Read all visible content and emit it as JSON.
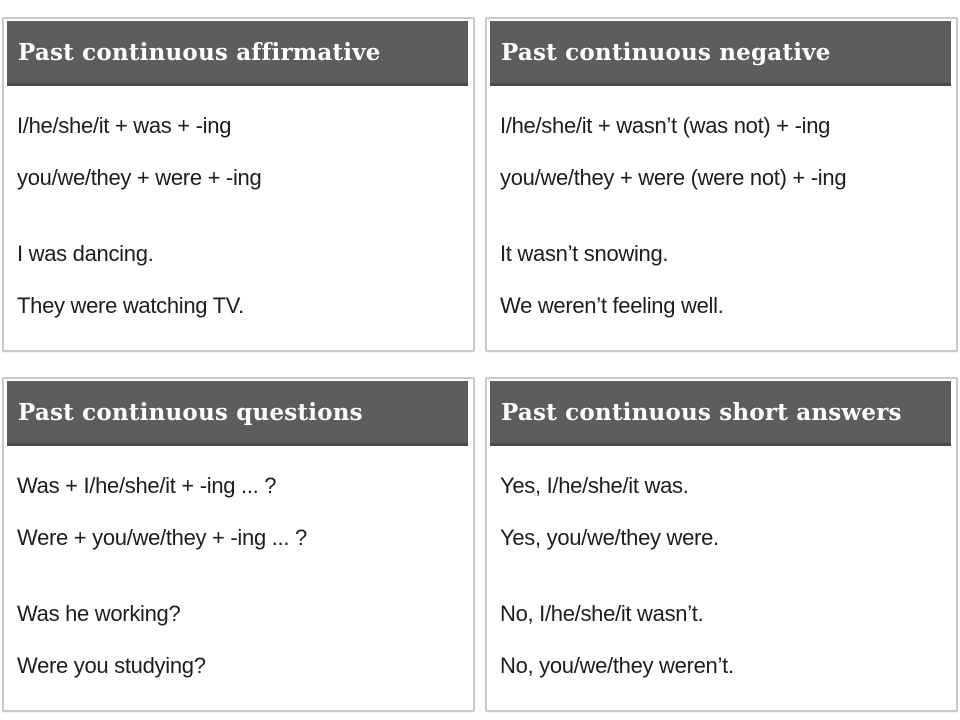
{
  "colors": {
    "header_bg": "#5c5d5f",
    "header_border_bottom": "#48494b",
    "header_text": "#ffffff",
    "card_border": "#c9c9c9",
    "body_text": "#1d1d1f",
    "page_bg": "#ffffff"
  },
  "cards": [
    {
      "title": "Past continuous affirmative",
      "formulas": [
        "I/he/she/it + was + -ing",
        "you/we/they + were + -ing"
      ],
      "examples": [
        "I was dancing.",
        "They were watching TV."
      ]
    },
    {
      "title": "Past continuous negative",
      "formulas": [
        "I/he/she/it + wasn’t (was not) + -ing",
        "you/we/they + were (were not) + -ing"
      ],
      "examples": [
        "It wasn’t snowing.",
        "We weren’t feeling well."
      ]
    },
    {
      "title": "Past continuous questions",
      "formulas": [
        "Was + I/he/she/it + -ing ... ?",
        "Were + you/we/they + -ing ... ?"
      ],
      "examples": [
        "Was he working?",
        "Were you studying?"
      ]
    },
    {
      "title": "Past continuous short answers",
      "formulas": [
        "Yes, I/he/she/it was.",
        "Yes, you/we/they were."
      ],
      "examples": [
        "No, I/he/she/it wasn’t.",
        "No, you/we/they weren’t."
      ]
    }
  ]
}
